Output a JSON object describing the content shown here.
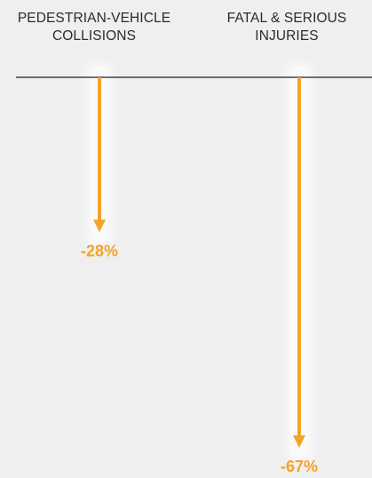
{
  "chart_data": {
    "type": "bar",
    "title": "",
    "xlabel": "",
    "ylabel": "",
    "categories": [
      [
        "PEDESTRIAN-VEHICLE",
        "COLLISIONS"
      ],
      [
        "FATAL & SERIOUS",
        "INJURIES"
      ]
    ],
    "values": [
      -28,
      -67
    ],
    "value_labels": [
      "-28%",
      "-67%"
    ],
    "ylim": [
      -70,
      0
    ],
    "grid": false,
    "legend": "none"
  },
  "colors": {
    "accent": "#f2a428",
    "background": "#efefef",
    "text": "#2b2b2b",
    "baseline": "#222222"
  }
}
